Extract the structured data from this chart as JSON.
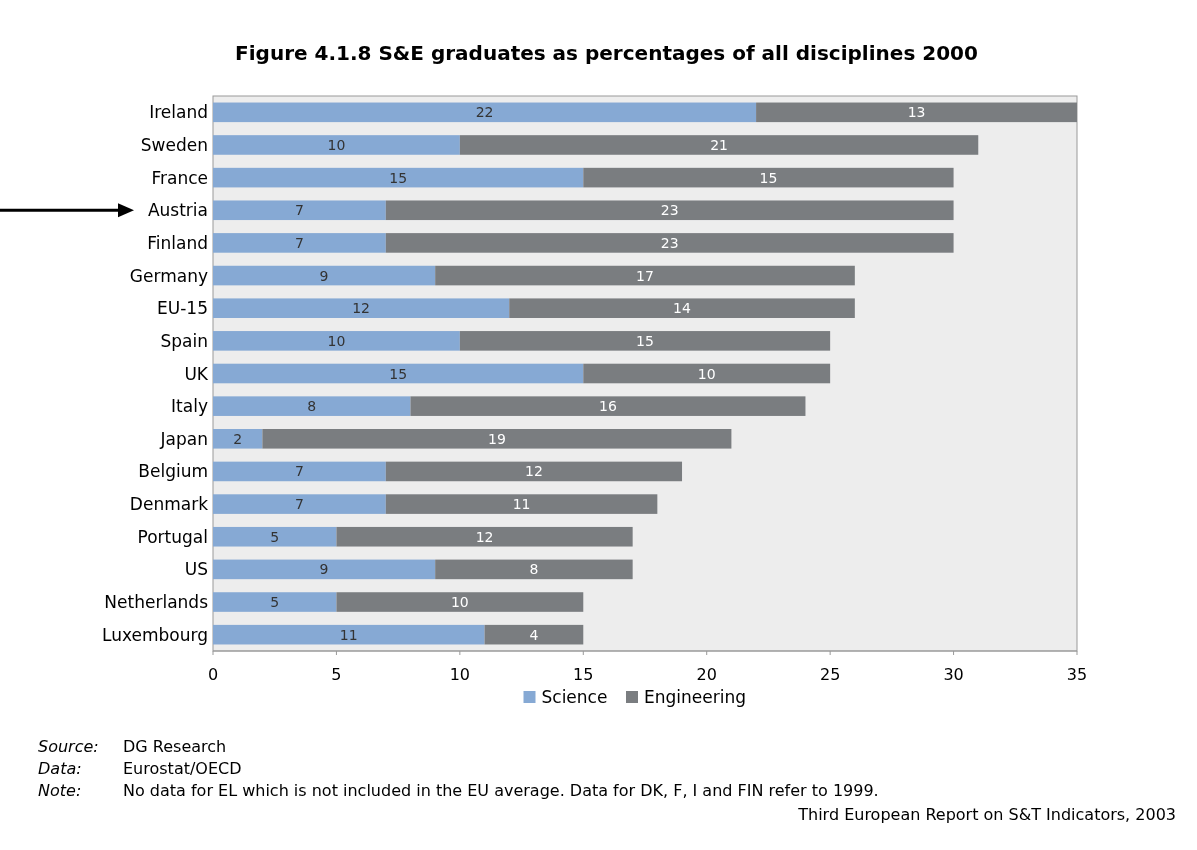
{
  "chart_data": {
    "type": "bar",
    "orientation": "horizontal",
    "stacked": true,
    "data_labels": true,
    "title": "Figure 4.1.8 S&E graduates as percentages of all disciplines 2000",
    "categories": [
      "Ireland",
      "Sweden",
      "France",
      "Austria",
      "Finland",
      "Germany",
      "EU-15",
      "Spain",
      "UK",
      "Italy",
      "Japan",
      "Belgium",
      "Denmark",
      "Portugal",
      "US",
      "Netherlands",
      "Luxembourg"
    ],
    "series": [
      {
        "name": "Science",
        "color": "#86a9d4",
        "values": [
          22,
          10,
          15,
          7,
          7,
          9,
          12,
          10,
          15,
          8,
          2,
          7,
          7,
          5,
          9,
          5,
          11
        ]
      },
      {
        "name": "Engineering",
        "color": "#7a7d80",
        "values": [
          13,
          21,
          15,
          23,
          23,
          17,
          14,
          15,
          10,
          16,
          19,
          12,
          11,
          12,
          8,
          10,
          4
        ]
      }
    ],
    "xlim": [
      0,
      35
    ],
    "xticks": [
      0,
      5,
      10,
      15,
      20,
      25,
      30,
      35
    ],
    "grid": false,
    "legend": "bottom",
    "annotations": [
      "Source: DG Research",
      "Data: Eurostat/OECD",
      "Note: No data for EL which is not included in the EU average. Data for DK, F, I and FIN refer to 1999.",
      "Third European Report on S&T Indicators, 2003"
    ]
  }
}
